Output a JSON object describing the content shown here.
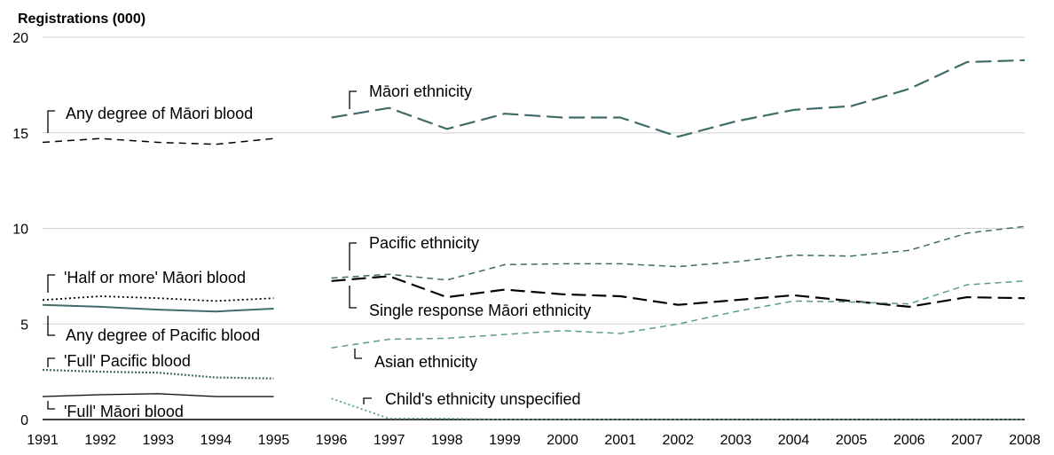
{
  "chart_data": {
    "type": "line",
    "title": "",
    "ylabel": "Registrations (000)",
    "xlabel": "",
    "ylim": [
      0,
      20
    ],
    "yticks": [
      "0",
      "5",
      "10",
      "15",
      "20"
    ],
    "xlim": [
      1991,
      2008
    ],
    "xticks": [
      "1991",
      "1992",
      "1993",
      "1994",
      "1995",
      "1996",
      "1997",
      "1998",
      "1999",
      "2000",
      "2001",
      "2002",
      "2003",
      "2004",
      "2005",
      "2006",
      "2007",
      "2008"
    ],
    "grid": "horizontal",
    "series": [
      {
        "name": "Any degree of Māori blood",
        "color": "#000000",
        "dash": "8,6",
        "width": 1.5,
        "x": [
          1991,
          1992,
          1993,
          1994,
          1995
        ],
        "y": [
          14.5,
          14.7,
          14.5,
          14.4,
          14.7
        ]
      },
      {
        "name": "'Half or more' Māori blood",
        "color": "#000000",
        "dash": "2,3",
        "width": 1.8,
        "x": [
          1991,
          1992,
          1993,
          1994,
          1995
        ],
        "y": [
          6.25,
          6.45,
          6.35,
          6.2,
          6.35
        ]
      },
      {
        "name": "Any degree of Pacific blood",
        "color": "#3f6b68",
        "dash": "",
        "width": 2,
        "x": [
          1991,
          1992,
          1993,
          1994,
          1995
        ],
        "y": [
          6.0,
          5.9,
          5.75,
          5.65,
          5.8
        ]
      },
      {
        "name": "'Full' Pacific blood",
        "color": "#3f6b68",
        "dash": "2,2",
        "width": 2.2,
        "x": [
          1991,
          1992,
          1993,
          1994,
          1995
        ],
        "y": [
          2.6,
          2.5,
          2.45,
          2.2,
          2.15
        ]
      },
      {
        "name": "'Full' Māori blood",
        "color": "#000000",
        "dash": "",
        "width": 1.3,
        "x": [
          1991,
          1992,
          1993,
          1994,
          1995
        ],
        "y": [
          1.2,
          1.3,
          1.35,
          1.2,
          1.2
        ]
      },
      {
        "name": "Māori ethnicity",
        "color": "#3f6b68",
        "dash": "18,7",
        "width": 2.2,
        "x": [
          1996,
          1997,
          1998,
          1999,
          2000,
          2001,
          2002,
          2003,
          2004,
          2005,
          2006,
          2007,
          2008
        ],
        "y": [
          15.8,
          16.3,
          15.2,
          16.0,
          15.8,
          15.8,
          14.8,
          15.6,
          16.2,
          16.4,
          17.3,
          18.7,
          18.8
        ]
      },
      {
        "name": "Pacific ethnicity",
        "color": "#3f6b68",
        "dash": "7,5",
        "width": 1.5,
        "x": [
          1996,
          1997,
          1998,
          1999,
          2000,
          2001,
          2002,
          2003,
          2004,
          2005,
          2006,
          2007,
          2008
        ],
        "y": [
          7.4,
          7.6,
          7.3,
          8.1,
          8.15,
          8.15,
          8.0,
          8.25,
          8.6,
          8.55,
          8.85,
          9.75,
          10.1
        ]
      },
      {
        "name": "Single response Māori ethnicity",
        "color": "#000000",
        "dash": "16,7",
        "width": 2.2,
        "x": [
          1996,
          1997,
          1998,
          1999,
          2000,
          2001,
          2002,
          2003,
          2004,
          2005,
          2006,
          2007,
          2008
        ],
        "y": [
          7.25,
          7.5,
          6.4,
          6.8,
          6.55,
          6.45,
          6.0,
          6.25,
          6.5,
          6.2,
          5.9,
          6.4,
          6.35
        ]
      },
      {
        "name": "Asian ethnicity",
        "color": "#5b9a93",
        "dash": "7,5",
        "width": 1.5,
        "x": [
          1996,
          1997,
          1998,
          1999,
          2000,
          2001,
          2002,
          2003,
          2004,
          2005,
          2006,
          2007,
          2008
        ],
        "y": [
          3.75,
          4.2,
          4.25,
          4.45,
          4.65,
          4.5,
          5.0,
          5.65,
          6.2,
          6.15,
          6.05,
          7.05,
          7.25
        ]
      },
      {
        "name": "Child's ethnicity unspecified",
        "color": "#5b9a93",
        "dash": "2,3",
        "width": 1.8,
        "x": [
          1996,
          1997,
          1998,
          1999,
          2000,
          2001,
          2002,
          2003,
          2004,
          2005,
          2006,
          2007,
          2008
        ],
        "y": [
          1.1,
          0.05,
          0.05,
          0.0,
          0.0,
          0.0,
          0.0,
          0.0,
          0.0,
          0.0,
          0.0,
          0.0,
          0.0
        ]
      }
    ]
  }
}
